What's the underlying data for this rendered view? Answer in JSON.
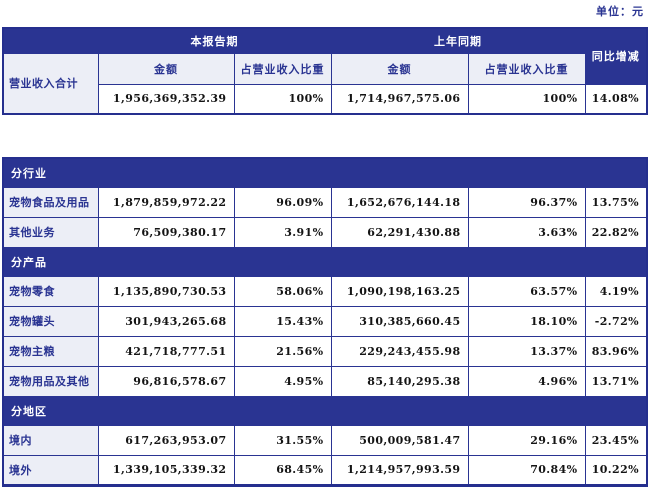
{
  "unit_label": "单位：元",
  "colors": {
    "header_bg": "#2a3492",
    "label_cell_bg": "#eceef6",
    "border": "#2a3492",
    "label_text": "#2a3492",
    "number_text": "#141414"
  },
  "headers": {
    "current_period": "本报告期",
    "prior_period": "上年同期",
    "yoy_change": "同比增减",
    "amount": "金额",
    "pct_of_revenue": "占营业收入比重"
  },
  "summary": {
    "label": "营业收入合计",
    "current_amount": "1,956,369,352.39",
    "current_pct": "100%",
    "prior_amount": "1,714,967,575.06",
    "prior_pct": "100%",
    "yoy": "14.08%"
  },
  "sections": [
    {
      "title": "分行业",
      "rows": [
        {
          "label": "宠物食品及用品",
          "current_amount": "1,879,859,972.22",
          "current_pct": "96.09%",
          "prior_amount": "1,652,676,144.18",
          "prior_pct": "96.37%",
          "yoy": "13.75%"
        },
        {
          "label": "其他业务",
          "current_amount": "76,509,380.17",
          "current_pct": "3.91%",
          "prior_amount": "62,291,430.88",
          "prior_pct": "3.63%",
          "yoy": "22.82%"
        }
      ]
    },
    {
      "title": "分产品",
      "rows": [
        {
          "label": "宠物零食",
          "current_amount": "1,135,890,730.53",
          "current_pct": "58.06%",
          "prior_amount": "1,090,198,163.25",
          "prior_pct": "63.57%",
          "yoy": "4.19%"
        },
        {
          "label": "宠物罐头",
          "current_amount": "301,943,265.68",
          "current_pct": "15.43%",
          "prior_amount": "310,385,660.45",
          "prior_pct": "18.10%",
          "yoy": "-2.72%"
        },
        {
          "label": "宠物主粮",
          "current_amount": "421,718,777.51",
          "current_pct": "21.56%",
          "prior_amount": "229,243,455.98",
          "prior_pct": "13.37%",
          "yoy": "83.96%"
        },
        {
          "label": "宠物用品及其他",
          "current_amount": "96,816,578.67",
          "current_pct": "4.95%",
          "prior_amount": "85,140,295.38",
          "prior_pct": "4.96%",
          "yoy": "13.71%"
        }
      ]
    },
    {
      "title": "分地区",
      "rows": [
        {
          "label": "境内",
          "current_amount": "617,263,953.07",
          "current_pct": "31.55%",
          "prior_amount": "500,009,581.47",
          "prior_pct": "29.16%",
          "yoy": "23.45%"
        },
        {
          "label": "境外",
          "current_amount": "1,339,105,339.32",
          "current_pct": "68.45%",
          "prior_amount": "1,214,957,993.59",
          "prior_pct": "70.84%",
          "yoy": "10.22%"
        }
      ]
    }
  ]
}
